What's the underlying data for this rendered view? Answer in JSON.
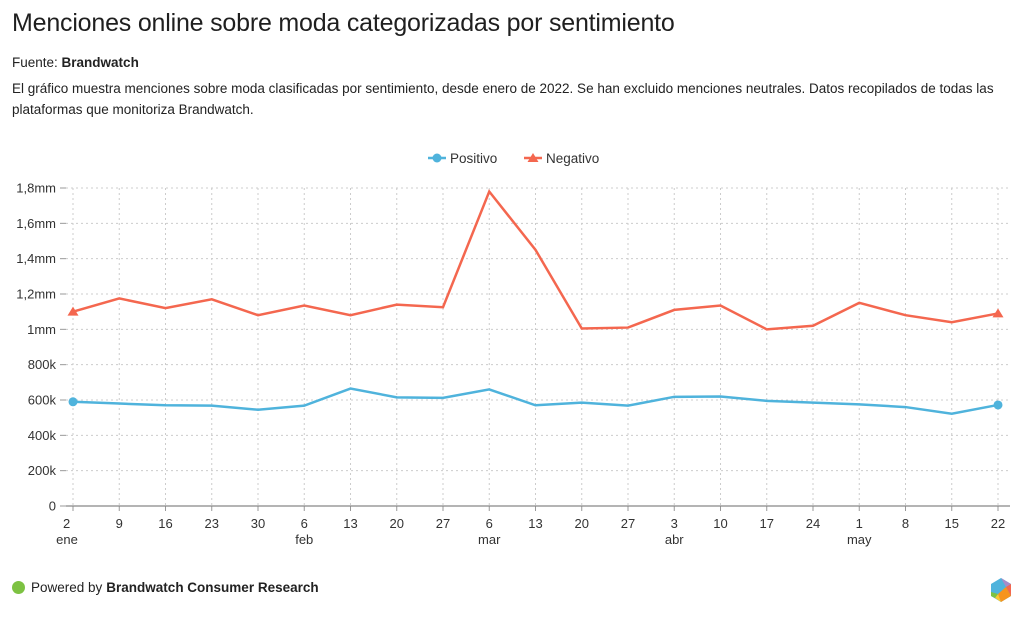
{
  "header": {
    "title": "Menciones online sobre moda categorizadas por sentimiento",
    "source_label": "Fuente:",
    "source_name": "Brandwatch",
    "description": "El gráfico muestra menciones sobre moda clasificadas por sentimiento, desde enero de 2022. Se han excluido menciones neutrales. Datos recopilados de todas las plataformas que monitoriza Brandwatch."
  },
  "footer": {
    "powered_label": "Powered by",
    "powered_name": "Brandwatch Consumer Research",
    "dot_color": "#7dc242",
    "logo_icon": "brandwatch-hexagon-logo"
  },
  "chart_data": {
    "type": "line",
    "title": "Menciones online sobre moda categorizadas por sentimiento",
    "xlabel": "",
    "ylabel": "",
    "ylim": [
      0,
      1800000
    ],
    "yticks": [
      0,
      200000,
      400000,
      600000,
      800000,
      1000000,
      1200000,
      1400000,
      1600000,
      1800000
    ],
    "ytick_labels": [
      "0",
      "200k",
      "400k",
      "600k",
      "800k",
      "1mm",
      "1,2mm",
      "1,4mm",
      "1,6mm",
      "1,8mm"
    ],
    "x": [
      "2",
      "9",
      "16",
      "23",
      "30",
      "6",
      "13",
      "20",
      "27",
      "6",
      "13",
      "20",
      "27",
      "3",
      "10",
      "17",
      "24",
      "1",
      "8",
      "15",
      "22"
    ],
    "x_month_labels": [
      {
        "index": 0,
        "label": "ene"
      },
      {
        "index": 5,
        "label": "feb"
      },
      {
        "index": 9,
        "label": "mar"
      },
      {
        "index": 13,
        "label": "abr"
      },
      {
        "index": 17,
        "label": "may"
      }
    ],
    "grid": true,
    "legend_position": "top-center",
    "series": [
      {
        "name": "Positivo",
        "color": "#4fb3dc",
        "marker": "circle",
        "values": [
          590000,
          580000,
          570000,
          568000,
          545000,
          568000,
          665000,
          615000,
          612000,
          660000,
          570000,
          585000,
          568000,
          618000,
          620000,
          595000,
          585000,
          575000,
          560000,
          522000,
          572000
        ]
      },
      {
        "name": "Negativo",
        "color": "#f4674f",
        "marker": "triangle",
        "values": [
          1100000,
          1175000,
          1120000,
          1170000,
          1080000,
          1135000,
          1080000,
          1140000,
          1125000,
          1780000,
          1450000,
          1005000,
          1010000,
          1110000,
          1135000,
          1000000,
          1020000,
          1150000,
          1080000,
          1040000,
          1090000
        ]
      }
    ]
  }
}
